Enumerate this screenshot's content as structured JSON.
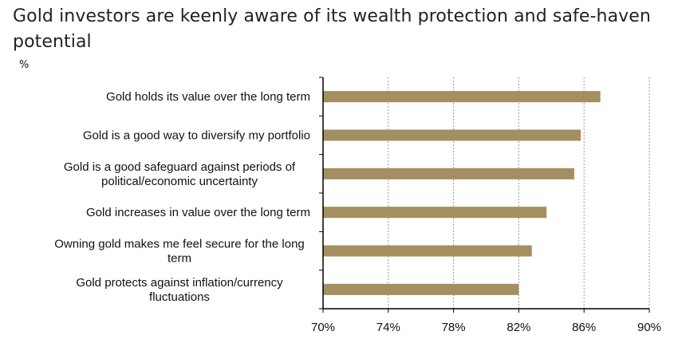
{
  "title": "Gold investors are keenly aware of its wealth protection and safe-haven potential",
  "unit_label": "%",
  "colors": {
    "bar": "#a38f60",
    "grid": "#9a9a9a",
    "axis": "#000000"
  },
  "chart_data": {
    "type": "bar",
    "orientation": "horizontal",
    "title": "Gold investors are keenly aware of its wealth protection and safe-haven potential",
    "ylabel": "%",
    "xlim": [
      70,
      90
    ],
    "xticks": [
      70,
      74,
      78,
      82,
      86,
      90
    ],
    "xtick_labels": [
      "70%",
      "74%",
      "78%",
      "82%",
      "86%",
      "90%"
    ],
    "grid": "vertical dashed",
    "categories": [
      [
        "Gold holds its value over the long term"
      ],
      [
        "Gold is a good way to diversify my portfolio"
      ],
      [
        "Gold is a good safeguard against periods of",
        "political/economic uncertainty"
      ],
      [
        "Gold increases in value over the long term"
      ],
      [
        "Owning gold makes me feel secure  for the long",
        "term"
      ],
      [
        "Gold protects against inflation/currency",
        "fluctuations"
      ]
    ],
    "values": [
      87,
      85.8,
      85.4,
      83.7,
      82.8,
      82
    ]
  }
}
